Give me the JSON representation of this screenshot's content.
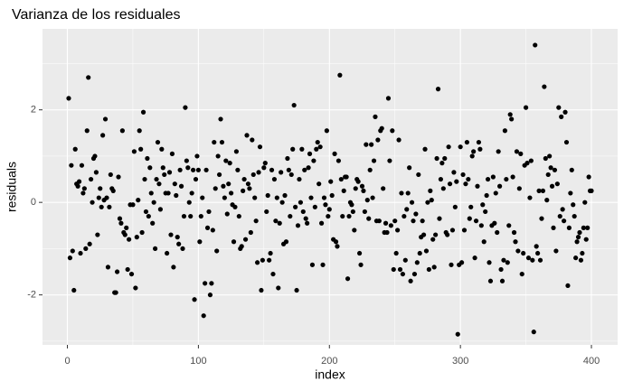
{
  "chart_data": {
    "type": "scatter",
    "title": "Varianza de los residuales",
    "x_label": "index",
    "y_label": "residuals",
    "xlim": [
      -19,
      420
    ],
    "ylim": [
      -3.08,
      3.75
    ],
    "xticks": [
      0,
      100,
      200,
      300,
      400
    ],
    "yticks": [
      -2,
      0,
      2
    ],
    "grid": true,
    "color": "#000000",
    "x": [
      1,
      2,
      3,
      4,
      5,
      6,
      7,
      8,
      9,
      10,
      11,
      12,
      13,
      14,
      15,
      16,
      17,
      18,
      19,
      20,
      21,
      22,
      23,
      24,
      25,
      26,
      27,
      28,
      29,
      30,
      31,
      32,
      33,
      34,
      35,
      36,
      37,
      38,
      39,
      40,
      41,
      42,
      43,
      44,
      45,
      46,
      47,
      48,
      49,
      50,
      51,
      52,
      53,
      54,
      55,
      56,
      57,
      58,
      59,
      60,
      61,
      62,
      63,
      64,
      65,
      66,
      67,
      68,
      69,
      70,
      71,
      72,
      73,
      74,
      75,
      76,
      77,
      78,
      79,
      80,
      81,
      82,
      83,
      84,
      85,
      86,
      87,
      88,
      89,
      90,
      91,
      92,
      93,
      94,
      95,
      96,
      97,
      98,
      99,
      100,
      101,
      102,
      103,
      104,
      105,
      106,
      107,
      108,
      109,
      110,
      111,
      112,
      113,
      114,
      115,
      116,
      117,
      118,
      119,
      120,
      121,
      122,
      123,
      124,
      125,
      126,
      127,
      128,
      129,
      130,
      131,
      132,
      133,
      134,
      135,
      136,
      137,
      138,
      139,
      140,
      141,
      142,
      143,
      144,
      145,
      146,
      147,
      148,
      149,
      150,
      151,
      152,
      153,
      154,
      155,
      156,
      157,
      158,
      159,
      160,
      161,
      162,
      163,
      164,
      165,
      166,
      167,
      168,
      169,
      170,
      171,
      172,
      173,
      174,
      175,
      176,
      177,
      178,
      179,
      180,
      181,
      182,
      183,
      184,
      185,
      186,
      187,
      188,
      189,
      190,
      191,
      192,
      193,
      194,
      195,
      196,
      197,
      198,
      199,
      200,
      201,
      202,
      203,
      204,
      205,
      206,
      207,
      208,
      209,
      210,
      211,
      212,
      213,
      214,
      215,
      216,
      217,
      218,
      219,
      220,
      221,
      222,
      223,
      224,
      225,
      226,
      227,
      228,
      229,
      230,
      231,
      232,
      233,
      234,
      235,
      236,
      237,
      238,
      239,
      240,
      241,
      242,
      243,
      244,
      245,
      246,
      247,
      248,
      249,
      250,
      251,
      252,
      253,
      254,
      255,
      256,
      257,
      258,
      259,
      260,
      261,
      262,
      263,
      264,
      265,
      266,
      267,
      268,
      269,
      270,
      271,
      272,
      273,
      274,
      275,
      276,
      277,
      278,
      279,
      280,
      281,
      282,
      283,
      284,
      285,
      286,
      287,
      288,
      289,
      290,
      291,
      292,
      293,
      294,
      295,
      296,
      297,
      298,
      299,
      300,
      301,
      302,
      303,
      304,
      305,
      306,
      307,
      308,
      309,
      310,
      311,
      312,
      313,
      314,
      315,
      316,
      317,
      318,
      319,
      320,
      321,
      322,
      323,
      324,
      325,
      326,
      327,
      328,
      329,
      330,
      331,
      332,
      333,
      334,
      335,
      336,
      337,
      338,
      339,
      340,
      341,
      342,
      343,
      344,
      345,
      346,
      347,
      348,
      349,
      350,
      351,
      352,
      353,
      354,
      355,
      356,
      357,
      358,
      359,
      360,
      361,
      362,
      363,
      364,
      365,
      366,
      367,
      368,
      369,
      370,
      371,
      372,
      373,
      374,
      375,
      376,
      377,
      378,
      379,
      380,
      381,
      382,
      383,
      384,
      385,
      386,
      387,
      388,
      389,
      390,
      391,
      392,
      393,
      394,
      395,
      396,
      397,
      398,
      399,
      400
    ],
    "values": [
      2.25,
      -1.2,
      0.8,
      -1.05,
      -1.9,
      1.15,
      0.4,
      0.35,
      0.45,
      -1.1,
      0.8,
      0.2,
      0.3,
      -1.0,
      1.55,
      2.7,
      -0.9,
      0.5,
      0.0,
      0.95,
      1.0,
      0.65,
      -0.7,
      0.1,
      0.3,
      -0.1,
      1.45,
      0.05,
      1.8,
      0.1,
      -1.4,
      -0.1,
      0.6,
      0.3,
      0.25,
      -1.95,
      -1.95,
      -1.5,
      0.55,
      -0.35,
      -0.45,
      1.55,
      -0.65,
      -0.7,
      -0.55,
      -1.45,
      -0.8,
      -0.05,
      -1.55,
      -0.05,
      1.1,
      -1.85,
      -0.75,
      0.05,
      1.55,
      1.15,
      -0.65,
      1.95,
      0.5,
      -0.2,
      0.95,
      -0.3,
      0.75,
      0.2,
      -0.45,
      0.0,
      -1.0,
      0.5,
      1.3,
      0.4,
      -0.15,
      1.15,
      0.75,
      0.6,
      0.2,
      -1.1,
      0.2,
      0.65,
      -0.7,
      1.05,
      -1.4,
      0.4,
      0.15,
      -0.75,
      -0.9,
      0.7,
      0.35,
      -1.0,
      -0.3,
      2.05,
      0.9,
      0.75,
      0.0,
      -0.3,
      0.2,
      0.7,
      -2.1,
      0.5,
      1.0,
      0.7,
      -0.85,
      -0.3,
      0.1,
      -2.45,
      -1.75,
      0.7,
      -0.55,
      -0.2,
      -2.0,
      -1.75,
      -0.6,
      1.3,
      0.3,
      -1.05,
      1.0,
      0.6,
      1.8,
      1.3,
      0.35,
      0.1,
      0.9,
      -0.25,
      0.4,
      0.85,
      0.2,
      -0.05,
      -0.85,
      -0.1,
      1.1,
      0.7,
      -0.3,
      -1.0,
      -0.95,
      0.25,
      0.5,
      -0.8,
      1.45,
      0.4,
      0.3,
      -0.65,
      1.35,
      0.6,
      0.1,
      -0.4,
      -1.3,
      0.65,
      1.2,
      -1.9,
      -1.25,
      0.75,
      0.85,
      -0.2,
      0.15,
      -1.25,
      -1.1,
      0.7,
      -1.55,
      0.5,
      -0.4,
      0.1,
      -1.85,
      -0.45,
      0.65,
      0.0,
      -0.9,
      0.15,
      -0.85,
      0.95,
      0.7,
      -0.3,
      0.6,
      1.15,
      2.1,
      -0.1,
      -1.9,
      -0.5,
      0.5,
      0.0,
      1.15,
      -0.2,
      0.7,
      -0.35,
      -0.45,
      0.75,
      1.05,
      0.1,
      -1.35,
      0.9,
      -0.1,
      1.15,
      1.3,
      0.4,
      1.2,
      -0.45,
      -1.35,
      0.1,
      -0.05,
      1.55,
      -0.3,
      -0.15,
      0.45,
      0.15,
      -0.8,
      1.05,
      -0.85,
      -0.95,
      0.9,
      2.75,
      0.5,
      -0.3,
      0.25,
      0.55,
      0.55,
      -1.65,
      -0.3,
      0.0,
      -0.05,
      -0.2,
      -0.6,
      0.3,
      0.5,
      0.45,
      -1.1,
      -1.35,
      0.35,
      0.25,
      -0.2,
      1.25,
      0.05,
      -0.35,
      0.7,
      1.25,
      0.1,
      0.9,
      1.85,
      -0.4,
      1.35,
      -0.4,
      1.55,
      1.6,
      0.3,
      -0.65,
      -0.45,
      -0.65,
      2.25,
      0.9,
      -0.5,
      1.55,
      -1.45,
      -0.4,
      -1.1,
      -0.6,
      1.35,
      -1.45,
      0.2,
      -1.55,
      -0.3,
      -1.25,
      -0.15,
      0.2,
      0.75,
      -1.7,
      0.0,
      -0.4,
      -1.55,
      -0.25,
      -1.3,
      0.6,
      -1.1,
      -0.75,
      -0.4,
      -0.7,
      1.15,
      -1.05,
      0.0,
      -1.45,
      0.25,
      0.05,
      -0.8,
      -1.4,
      -0.7,
      0.95,
      2.45,
      -0.35,
      0.5,
      0.85,
      0.3,
      0.95,
      -0.65,
      -0.7,
      1.2,
      0.4,
      -1.35,
      -0.6,
      0.65,
      -0.1,
      0.45,
      -2.85,
      -1.35,
      1.2,
      -1.3,
      0.6,
      -0.6,
      0.4,
      1.3,
      0.5,
      -0.35,
      -0.1,
      1.0,
      1.1,
      -1.2,
      -0.4,
      0.35,
      1.3,
      1.15,
      -0.5,
      -0.05,
      -0.85,
      -0.2,
      0.15,
      0.5,
      -1.3,
      -1.7,
      -0.5,
      0.55,
      -0.45,
      0.2,
      -0.65,
      1.1,
      0.35,
      -1.45,
      -1.7,
      -1.25,
      1.55,
      0.5,
      -1.3,
      -0.5,
      1.9,
      1.8,
      0.55,
      -0.65,
      -0.85,
      1.1,
      -1.05,
      0.3,
      1.05,
      -1.55,
      -1.1,
      0.8,
      2.05,
      0.85,
      -1.2,
      0.1,
      0.9,
      -1.25,
      -2.8,
      3.4,
      -0.95,
      -1.1,
      0.25,
      -1.25,
      -0.35,
      0.25,
      2.5,
      0.95,
      0.05,
      0.6,
      1.0,
      0.75,
      0.35,
      -0.55,
      0.7,
      -1.05,
      0.4,
      2.05,
      -0.3,
      1.85,
      -0.15,
      -0.4,
      1.95,
      1.3,
      -1.8,
      -0.55,
      0.2,
      0.7,
      -0.05,
      -0.3,
      -1.2,
      -0.85,
      -0.75,
      -0.65,
      -1.25,
      -1.1,
      -0.55,
      0.0,
      -0.8,
      -0.55,
      0.55,
      0.25,
      0.25
    ]
  }
}
